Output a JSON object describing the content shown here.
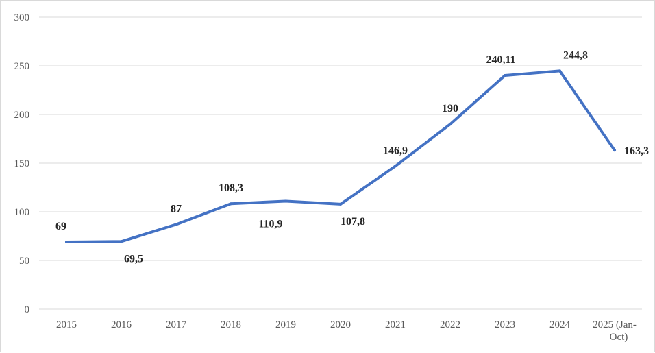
{
  "chart_data": {
    "type": "line",
    "categories": [
      "2015",
      "2016",
      "2017",
      "2018",
      "2019",
      "2020",
      "2021",
      "2022",
      "2023",
      "2024",
      "2025 (Jan-Oct)"
    ],
    "category_lines": [
      [
        "2015"
      ],
      [
        "2016"
      ],
      [
        "2017"
      ],
      [
        "2018"
      ],
      [
        "2019"
      ],
      [
        "2020"
      ],
      [
        "2021"
      ],
      [
        "2022"
      ],
      [
        "2023"
      ],
      [
        "2024"
      ],
      [
        "2025 (Jan-",
        "Oct)"
      ]
    ],
    "series": [
      {
        "values": [
          69,
          69.5,
          87,
          108.3,
          110.9,
          107.8,
          146.9,
          190,
          240.11,
          244.8,
          163.3
        ],
        "labels": [
          "69",
          "69,5",
          "87",
          "108,3",
          "110,9",
          "107,8",
          "146,9",
          "190",
          "240,11",
          "244,8",
          "163,3"
        ],
        "color": "#4472c4"
      }
    ],
    "yticks": [
      "0",
      "50",
      "100",
      "150",
      "200",
      "250",
      "300"
    ],
    "ylim": [
      0,
      300
    ],
    "grid": true,
    "legend": "none",
    "title": "",
    "xlabel": "",
    "ylabel": ""
  }
}
